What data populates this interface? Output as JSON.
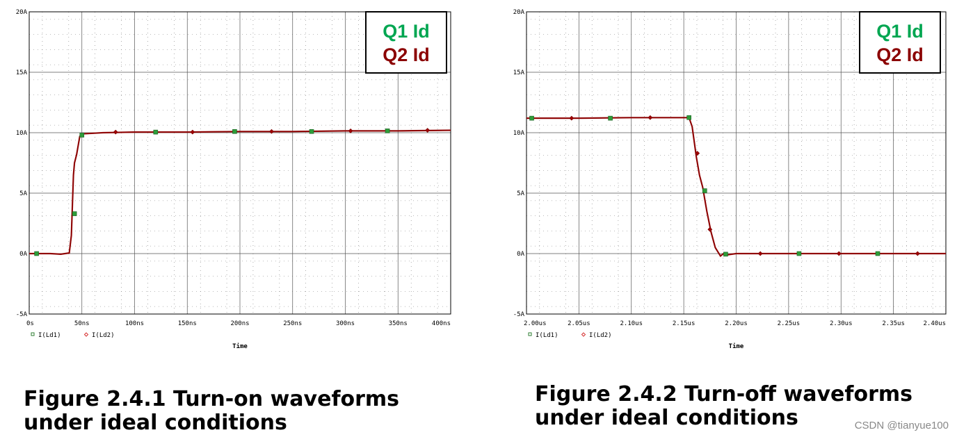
{
  "chart_data": [
    {
      "type": "line",
      "title": "",
      "xlabel": "Time",
      "ylabel": "",
      "ylim": [
        -5,
        20
      ],
      "xlim": [
        0,
        400
      ],
      "x_ticks": [
        "0s",
        "50ns",
        "100ns",
        "150ns",
        "200ns",
        "250ns",
        "300ns",
        "350ns",
        "400ns"
      ],
      "y_ticks": [
        "20A",
        "15A",
        "10A",
        "5A",
        "0A",
        "-5A"
      ],
      "grid": true,
      "series": [
        {
          "name": "I(Ld1)",
          "color": "#2e7d32",
          "x": [
            0,
            20,
            30,
            38,
            40,
            41,
            42,
            43,
            45,
            48,
            50,
            70,
            100,
            150,
            200,
            250,
            300,
            350,
            400
          ],
          "y": [
            0,
            0,
            -0.05,
            0.05,
            1.5,
            4,
            6.5,
            7.5,
            8.2,
            9.7,
            9.9,
            10.0,
            10.05,
            10.05,
            10.1,
            10.1,
            10.15,
            10.15,
            10.2
          ]
        },
        {
          "name": "I(Ld2)",
          "color": "#8b0000",
          "x": [
            0,
            20,
            30,
            38,
            40,
            41,
            42,
            43,
            45,
            48,
            50,
            70,
            100,
            150,
            200,
            250,
            300,
            350,
            400
          ],
          "y": [
            0,
            0,
            -0.05,
            0.05,
            1.5,
            4,
            6.5,
            7.5,
            8.2,
            9.7,
            9.9,
            10.0,
            10.05,
            10.05,
            10.1,
            10.1,
            10.15,
            10.15,
            10.2
          ]
        }
      ],
      "markers_ld1": [
        [
          7,
          0
        ],
        [
          43,
          3.3
        ],
        [
          50,
          9.8
        ],
        [
          120,
          10.05
        ],
        [
          195,
          10.1
        ],
        [
          268,
          10.1
        ],
        [
          340,
          10.15
        ]
      ],
      "markers_ld2": [
        [
          82,
          10.05
        ],
        [
          155,
          10.05
        ],
        [
          230,
          10.1
        ],
        [
          305,
          10.15
        ],
        [
          378,
          10.2
        ]
      ],
      "annotations": [
        "Q1 Id",
        "Q2 Id"
      ]
    },
    {
      "type": "line",
      "title": "",
      "xlabel": "Time",
      "ylabel": "",
      "ylim": [
        -5,
        20
      ],
      "xlim": [
        2.0,
        2.4
      ],
      "x_ticks": [
        "2.00us",
        "2.05us",
        "2.10us",
        "2.15us",
        "2.20us",
        "2.25us",
        "2.30us",
        "2.35us",
        "2.40us"
      ],
      "y_ticks": [
        "20A",
        "15A",
        "10A",
        "5A",
        "0A",
        "-5A"
      ],
      "grid": true,
      "series": [
        {
          "name": "I(Ld1)",
          "color": "#2e7d32",
          "x": [
            2.0,
            2.05,
            2.1,
            2.155,
            2.158,
            2.162,
            2.165,
            2.168,
            2.172,
            2.176,
            2.18,
            2.185,
            2.188,
            2.192,
            2.2,
            2.25,
            2.3,
            2.35,
            2.4
          ],
          "y": [
            11.2,
            11.2,
            11.25,
            11.25,
            10.5,
            8.0,
            6.5,
            5.5,
            3.5,
            1.8,
            0.5,
            -0.2,
            0.0,
            -0.1,
            0.0,
            0.0,
            0.0,
            0.0,
            0.0
          ]
        },
        {
          "name": "I(Ld2)",
          "color": "#8b0000",
          "x": [
            2.0,
            2.05,
            2.1,
            2.155,
            2.158,
            2.162,
            2.165,
            2.168,
            2.172,
            2.176,
            2.18,
            2.185,
            2.188,
            2.192,
            2.2,
            2.25,
            2.3,
            2.35,
            2.4
          ],
          "y": [
            11.2,
            11.2,
            11.25,
            11.25,
            10.5,
            8.0,
            6.5,
            5.5,
            3.5,
            1.8,
            0.5,
            -0.2,
            0.0,
            -0.1,
            0.0,
            0.0,
            0.0,
            0.0,
            0.0
          ]
        }
      ],
      "markers_ld1": [
        [
          2.005,
          11.2
        ],
        [
          2.08,
          11.2
        ],
        [
          2.155,
          11.25
        ],
        [
          2.17,
          5.2
        ],
        [
          2.19,
          -0.05
        ],
        [
          2.26,
          0
        ],
        [
          2.335,
          0
        ]
      ],
      "markers_ld2": [
        [
          2.043,
          11.2
        ],
        [
          2.118,
          11.25
        ],
        [
          2.163,
          8.3
        ],
        [
          2.175,
          2.0
        ],
        [
          2.223,
          0
        ],
        [
          2.298,
          0
        ],
        [
          2.373,
          0
        ]
      ],
      "annotations": [
        "Q1 Id",
        "Q2 Id"
      ]
    }
  ],
  "legend": {
    "ld1": "I(Ld1)",
    "ld2": "I(Ld2)",
    "q1": "Q1 Id",
    "q2": "Q2 Id"
  },
  "captions": {
    "left_line1": "Figure 2.4.1 Turn-on waveforms",
    "left_line2": "under ideal conditions",
    "right_line1": "Figure 2.4.2 Turn-off waveforms",
    "right_line2": "under ideal conditions"
  },
  "watermark": "CSDN @tianyue100",
  "colors": {
    "q1": "#00a651",
    "q2": "#8b0000",
    "trace": "#a52a2a"
  }
}
